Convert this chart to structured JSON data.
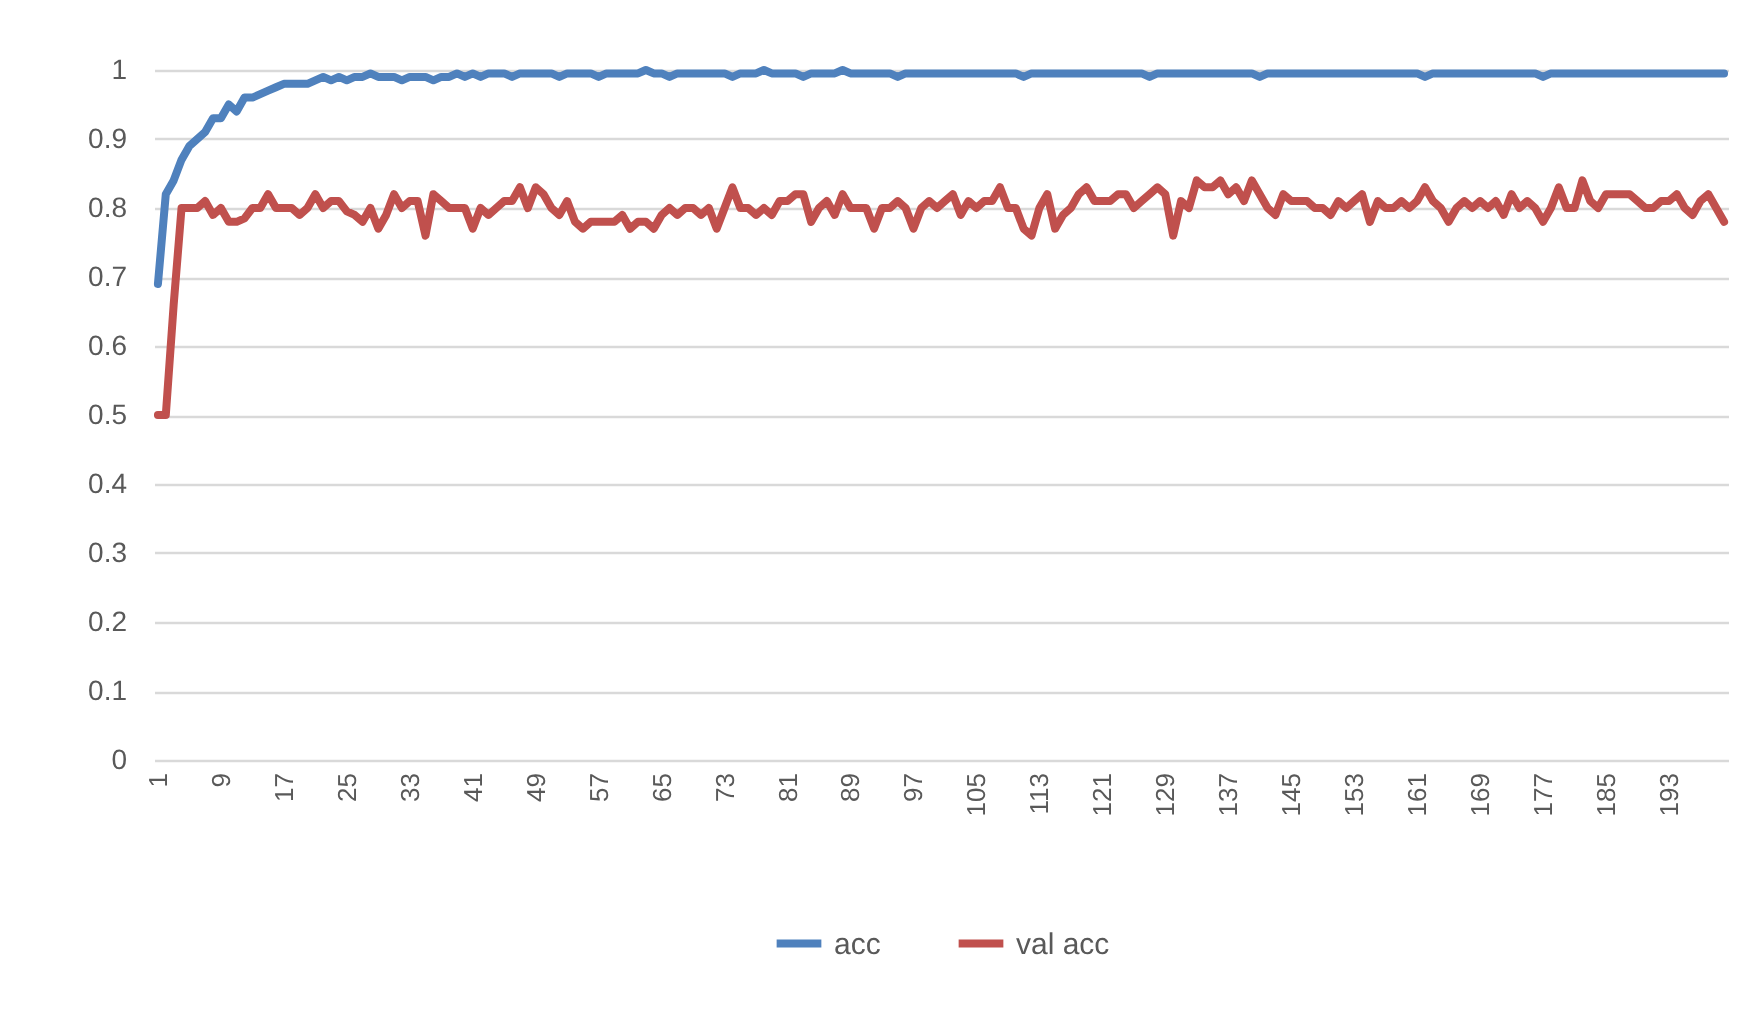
{
  "chart_data": {
    "type": "line",
    "categories": [
      "1",
      null,
      null,
      null,
      null,
      null,
      null,
      null,
      "9",
      null,
      null,
      null,
      null,
      null,
      null,
      null,
      "17",
      null,
      null,
      null,
      null,
      null,
      null,
      null,
      "25",
      null,
      null,
      null,
      null,
      null,
      null,
      null,
      "33",
      null,
      null,
      null,
      null,
      null,
      null,
      null,
      "41",
      null,
      null,
      null,
      null,
      null,
      null,
      null,
      "49",
      null,
      null,
      null,
      null,
      null,
      null,
      null,
      "57",
      null,
      null,
      null,
      null,
      null,
      null,
      null,
      "65",
      null,
      null,
      null,
      null,
      null,
      null,
      null,
      "73",
      null,
      null,
      null,
      null,
      null,
      null,
      null,
      "81",
      null,
      null,
      null,
      null,
      null,
      null,
      null,
      "89",
      null,
      null,
      null,
      null,
      null,
      null,
      null,
      "97",
      null,
      null,
      null,
      null,
      null,
      null,
      null,
      "105",
      null,
      null,
      null,
      null,
      null,
      null,
      null,
      "113",
      null,
      null,
      null,
      null,
      null,
      null,
      null,
      "121",
      null,
      null,
      null,
      null,
      null,
      null,
      null,
      "129",
      null,
      null,
      null,
      null,
      null,
      null,
      null,
      "137",
      null,
      null,
      null,
      null,
      null,
      null,
      null,
      "145",
      null,
      null,
      null,
      null,
      null,
      null,
      null,
      "153",
      null,
      null,
      null,
      null,
      null,
      null,
      null,
      "161",
      null,
      null,
      null,
      null,
      null,
      null,
      null,
      "169",
      null,
      null,
      null,
      null,
      null,
      null,
      null,
      "177",
      null,
      null,
      null,
      null,
      null,
      null,
      null,
      "185",
      null,
      null,
      null,
      null,
      null,
      null,
      null,
      "193",
      null,
      null,
      null,
      null,
      null,
      null,
      null
    ],
    "series": [
      {
        "name": "acc",
        "color": "#4f81bd",
        "values": [
          0.69,
          0.82,
          0.84,
          0.87,
          0.89,
          0.9,
          0.91,
          0.93,
          0.93,
          0.95,
          0.94,
          0.96,
          0.96,
          0.965,
          0.97,
          0.975,
          0.98,
          0.98,
          0.98,
          0.98,
          0.985,
          0.99,
          0.985,
          0.99,
          0.985,
          0.99,
          0.99,
          0.995,
          0.99,
          0.99,
          0.99,
          0.985,
          0.99,
          0.99,
          0.99,
          0.985,
          0.99,
          0.99,
          0.995,
          0.99,
          0.995,
          0.99,
          0.995,
          0.995,
          0.995,
          0.99,
          0.995,
          0.995,
          0.995,
          0.995,
          0.995,
          0.99,
          0.995,
          0.995,
          0.995,
          0.995,
          0.99,
          0.995,
          0.995,
          0.995,
          0.995,
          0.995,
          1,
          0.995,
          0.995,
          0.99,
          0.995,
          0.995,
          0.995,
          0.995,
          0.995,
          0.995,
          0.995,
          0.99,
          0.995,
          0.995,
          0.995,
          1,
          0.995,
          0.995,
          0.995,
          0.995,
          0.99,
          0.995,
          0.995,
          0.995,
          0.995,
          1,
          0.995,
          0.995,
          0.995,
          0.995,
          0.995,
          0.995,
          0.99,
          0.995,
          0.995,
          0.995,
          0.995,
          0.995,
          0.995,
          0.995,
          0.995,
          0.995,
          0.995,
          0.995,
          0.995,
          0.995,
          0.995,
          0.995,
          0.99,
          0.995,
          0.995,
          0.995,
          0.995,
          0.995,
          0.995,
          0.995,
          0.995,
          0.995,
          0.995,
          0.995,
          0.995,
          0.995,
          0.995,
          0.995,
          0.99,
          0.995,
          0.995,
          0.995,
          0.995,
          0.995,
          0.995,
          0.995,
          0.995,
          0.995,
          0.995,
          0.995,
          0.995,
          0.995,
          0.99,
          0.995,
          0.995,
          0.995,
          0.995,
          0.995,
          0.995,
          0.995,
          0.995,
          0.995,
          0.995,
          0.995,
          0.995,
          0.995,
          0.995,
          0.995,
          0.995,
          0.995,
          0.995,
          0.995,
          0.995,
          0.99,
          0.995,
          0.995,
          0.995,
          0.995,
          0.995,
          0.995,
          0.995,
          0.995,
          0.995,
          0.995,
          0.995,
          0.995,
          0.995,
          0.995,
          0.99,
          0.995,
          0.995,
          0.995,
          0.995,
          0.995,
          0.995,
          0.995,
          0.995,
          0.995,
          0.995,
          0.995,
          0.995,
          0.995,
          0.995,
          0.995,
          0.995,
          0.995,
          0.995,
          0.995,
          0.995,
          0.995,
          0.995,
          0.995
        ]
      },
      {
        "name": "val acc",
        "color": "#c0504d",
        "values": [
          0.5,
          0.5,
          0.66,
          0.8,
          0.8,
          0.8,
          0.81,
          0.79,
          0.8,
          0.78,
          0.78,
          0.785,
          0.8,
          0.8,
          0.82,
          0.8,
          0.8,
          0.8,
          0.79,
          0.8,
          0.82,
          0.8,
          0.81,
          0.81,
          0.795,
          0.79,
          0.78,
          0.8,
          0.77,
          0.79,
          0.82,
          0.8,
          0.81,
          0.81,
          0.76,
          0.82,
          0.81,
          0.8,
          0.8,
          0.8,
          0.77,
          0.8,
          0.79,
          0.8,
          0.81,
          0.81,
          0.83,
          0.8,
          0.83,
          0.82,
          0.8,
          0.79,
          0.81,
          0.78,
          0.77,
          0.78,
          0.78,
          0.78,
          0.78,
          0.79,
          0.77,
          0.78,
          0.78,
          0.77,
          0.79,
          0.8,
          0.79,
          0.8,
          0.8,
          0.79,
          0.8,
          0.77,
          0.8,
          0.83,
          0.8,
          0.8,
          0.79,
          0.8,
          0.79,
          0.81,
          0.81,
          0.82,
          0.82,
          0.78,
          0.8,
          0.81,
          0.79,
          0.82,
          0.8,
          0.8,
          0.8,
          0.77,
          0.8,
          0.8,
          0.81,
          0.8,
          0.77,
          0.8,
          0.81,
          0.8,
          0.81,
          0.82,
          0.79,
          0.81,
          0.8,
          0.81,
          0.81,
          0.83,
          0.8,
          0.8,
          0.77,
          0.76,
          0.8,
          0.82,
          0.77,
          0.79,
          0.8,
          0.82,
          0.83,
          0.81,
          0.81,
          0.81,
          0.82,
          0.82,
          0.8,
          0.81,
          0.82,
          0.83,
          0.82,
          0.76,
          0.81,
          0.8,
          0.84,
          0.83,
          0.83,
          0.84,
          0.82,
          0.83,
          0.81,
          0.84,
          0.82,
          0.8,
          0.79,
          0.82,
          0.81,
          0.81,
          0.81,
          0.8,
          0.8,
          0.79,
          0.81,
          0.8,
          0.81,
          0.82,
          0.78,
          0.81,
          0.8,
          0.8,
          0.81,
          0.8,
          0.81,
          0.83,
          0.81,
          0.8,
          0.78,
          0.8,
          0.81,
          0.8,
          0.81,
          0.8,
          0.81,
          0.79,
          0.82,
          0.8,
          0.81,
          0.8,
          0.78,
          0.8,
          0.83,
          0.8,
          0.8,
          0.84,
          0.81,
          0.8,
          0.82,
          0.82,
          0.82,
          0.82,
          0.81,
          0.8,
          0.8,
          0.81,
          0.81,
          0.82,
          0.8,
          0.79,
          0.81,
          0.82,
          0.8,
          0.78
        ]
      }
    ],
    "ylim": [
      0,
      1
    ],
    "yticks": [
      0,
      0.1,
      0.2,
      0.3,
      0.4,
      0.5,
      0.6,
      0.7,
      0.8,
      0.9,
      1
    ],
    "grid": "y",
    "legend": "bottom",
    "line_style": "solid"
  }
}
